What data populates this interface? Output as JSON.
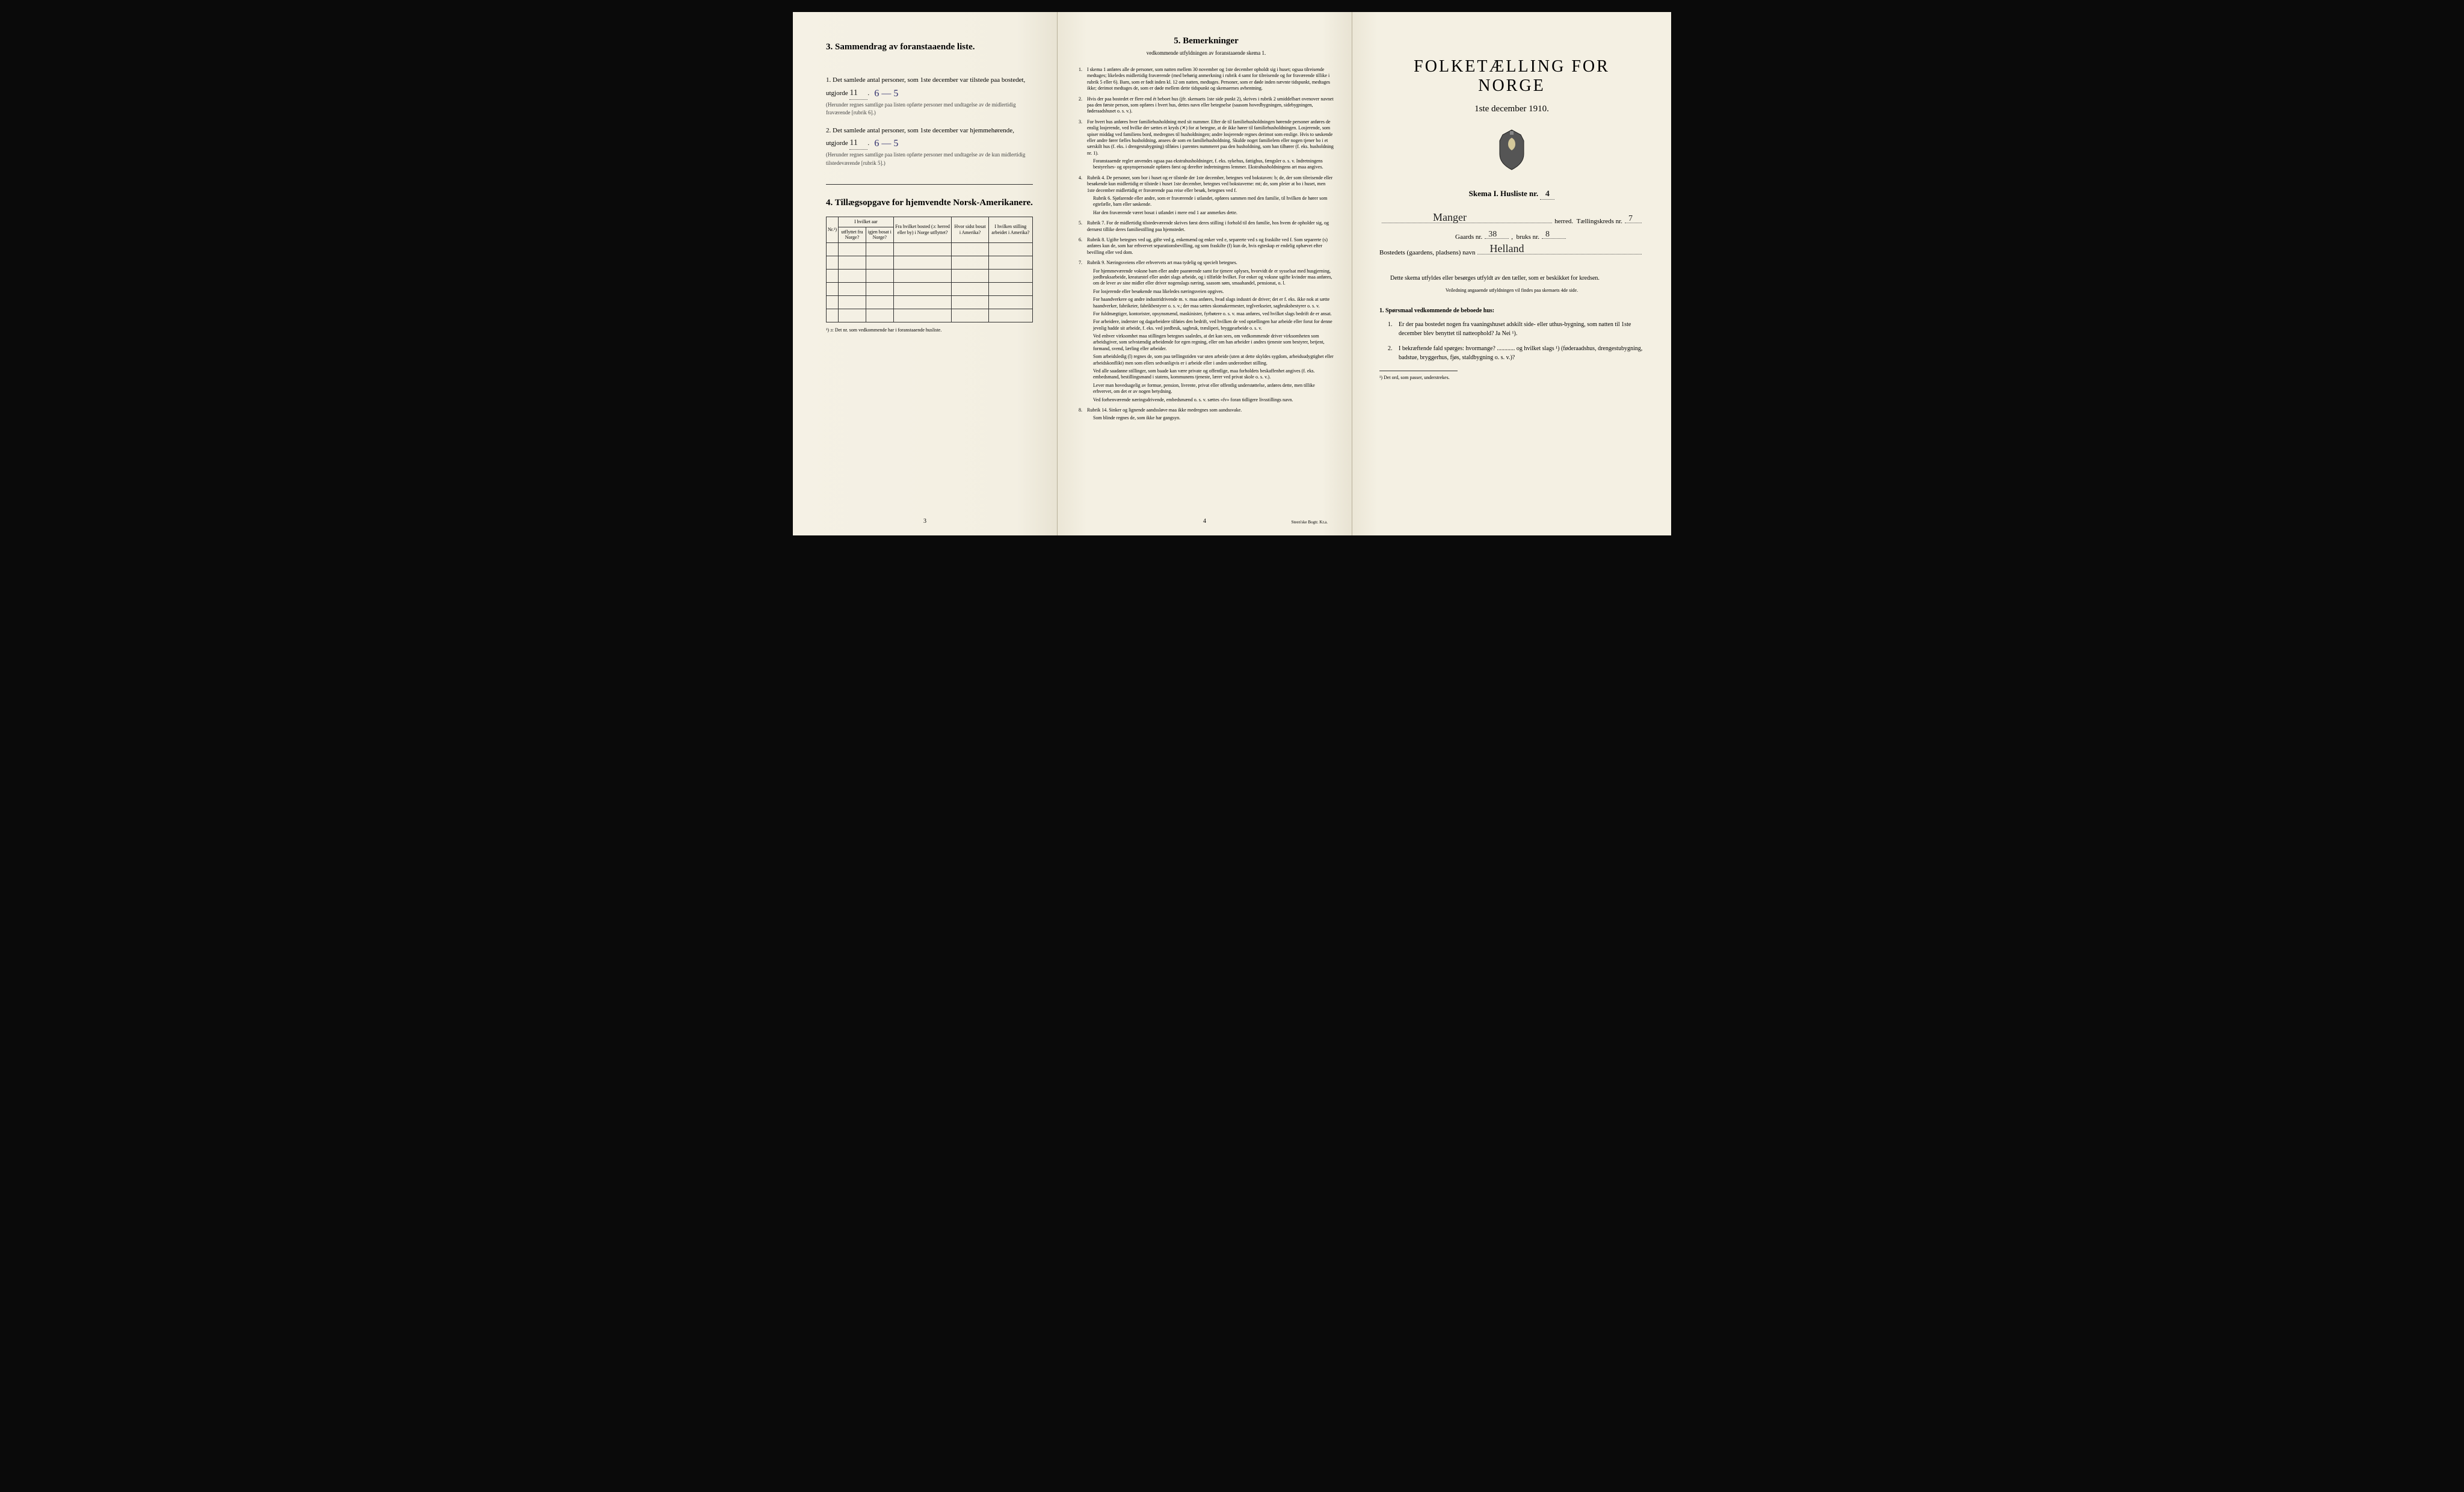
{
  "left": {
    "section3_heading": "3.   Sammendrag av foranstaaende liste.",
    "item1_text": "1.  Det samlede antal personer, som 1ste december var tilstede paa bostedet, utgjorde",
    "item1_total": "11",
    "item1_breakdown": "6 — 5",
    "item1_note": "(Herunder regnes samtlige paa listen opførte personer med undtagelse av de midlertidig fraværende [rubrik 6].)",
    "item2_text": "2.  Det samlede antal personer, som 1ste december var hjemmehørende, utgjorde",
    "item2_total": "11",
    "item2_breakdown": "6 — 5",
    "item2_note": "(Herunder regnes samtlige paa listen opførte personer med undtagelse av de kun midlertidig tilstedeværende [rubrik 5].)",
    "section4_heading": "4.  Tillægsopgave for hjemvendte Norsk-Amerikanere.",
    "table_headers": {
      "nr": "Nr.¹)",
      "year_group": "I hvilket aar",
      "emigrated": "utflyttet fra Norge?",
      "returned": "igjen bosat i Norge?",
      "from_place": "Fra hvilket bosted (ɔ: herred eller by) i Norge utflyttet?",
      "where_america": "Hvor sidst bosat i Amerika?",
      "occupation": "I hvilken stilling arbeidet i Amerika?"
    },
    "table_rows": 6,
    "footnote": "¹) ɔ: Det nr. som vedkommende har i foranstaaende husliste.",
    "page_num": "3"
  },
  "middle": {
    "heading": "5.   Bemerkninger",
    "subheading": "vedkommende utfyldningen av foranstaaende skema 1.",
    "items": [
      {
        "n": "1.",
        "text": "I skema 1 anføres alle de personer, som natten mellem 30 november og 1ste december opholdt sig i huset; ogsaa tilreisende medtages; likeledes midlertidig fraværende (med behørig anmerkning i rubrik 4 samt for tilreisende og for fraværende tillike i rubrik 5 eller 6). Barn, som er født inden kl. 12 om natten, medtages. Personer, som er døde inden nævnte tidspunkt, medtages ikke; derimot medtages de, som er døde mellem dette tidspunkt og skemaernes avhentning."
      },
      {
        "n": "2.",
        "text": "Hvis der paa bostedet er flere end ét beboet hus (jfr. skemaets 1ste side punkt 2), skrives i rubrik 2 umiddelbart ovenover navnet paa den første person, som opføres i hvert hus, dettes navn eller betegnelse (saasom hovedbygningen, sidebygningen, føderaadshuset o. s. v.)."
      },
      {
        "n": "3.",
        "text": "For hvert hus anføres hver familiehusholdning med sit nummer. Efter de til familiehusholdningen hørende personer anføres de enslig losjerende, ved hvilke der sættes et kryds (✕) for at betegne, at de ikke hører til familiehusholdningen. Losjerende, som spiser middag ved familiens bord, medregnes til husholdningen; andre losjerende regnes derimot som enslige. Hvis to søskende eller andre fører fælles husholdning, ansees de som en familiehusholdning. Skulde noget familielem eller nogen tjener bo i et særskilt hus (f. eks. i drengestubygning) tilføies i parentes nummeret paa den husholdning, som han tilhører (f. eks. husholdning nr. 1).",
        "subs": [
          "Foranstaaende regler anvendes ogsaa paa ekstrahusholdninger, f. eks. sykehus, fattighus, fængsler o. s. v. Indretningens bestyrelses- og opsynspersonale opføres først og derefter indretningens lemmer. Ekstrahusholdningens art maa angives."
        ]
      },
      {
        "n": "4.",
        "text": "Rubrik 4. De personer, som bor i huset og er tilstede der 1ste december, betegnes ved bokstaven: b; de, der som tilreisende eller besøkende kun midlertidig er tilstede i huset 1ste december, betegnes ved bokstaverne: mt; de, som pleier at bo i huset, men 1ste december midlertidig er fraværende paa reise eller besøk, betegnes ved f.",
        "subs": [
          "Rubrik 6. Sjøfarende eller andre, som er fraværende i utlandet, opføres sammen med den familie, til hvilken de hører som egtefælle, barn eller søskende.",
          "Har den fraværende været bosat i utlandet i mere end 1 aar anmerkes dette."
        ]
      },
      {
        "n": "5.",
        "text": "Rubrik 7. For de midlertidig tilstedeværende skrives først deres stilling i forhold til den familie, hos hvem de opholder sig, og dernæst tillike deres familiestilling paa hjemstedet."
      },
      {
        "n": "6.",
        "text": "Rubrik 8. Ugifte betegnes ved ug, gifte ved g, enkemænd og enker ved e, separerte ved s og fraskilte ved f. Som separerte (s) anføres kun de, som har erhvervet separationsbevilling, og som fraskilte (f) kun de, hvis egteskap er endelig ophævet efter bevilling eller ved dom."
      },
      {
        "n": "7.",
        "text": "Rubrik 9. Næringsveiens eller erhvervets art maa tydelig og specielt betegnes.",
        "subs": [
          "For hjemmeværende voksne barn eller andre paarørende samt for tjenere oplyses, hvorvidt de er sysselsat med husgjerning, jordbruksarbeide, kreaturstel eller andet slags arbeide, og i tilfælde hvilket. For enker og voksne ugifte kvinder maa anføres, om de lever av sine midler eller driver nogenslags næring, saasom søm, smaahandel, pensionat, o. l.",
          "For losjerende eller besøkende maa likeledes næringsveien opgives.",
          "For haandverkere og andre industridrivende m. v. maa anføres, hvad slags industri de driver; det er f. eks. ikke nok at sætte haandverker, fabrikeier, fabrikbestyrer o. s. v.; der maa sættes skomakermester, teglverkseier, sagbruksbestyrer o. s. v.",
          "For fuldmægtiger, kontorister, opsynsmænd, maskinister, fyrbøtere o. s. v. maa anføres, ved hvilket slags bedrift de er ansat.",
          "For arbeidere, inderster og dagarbeidere tilføies den bedrift, ved hvilken de ved optællingen har arbeide eller forut for denne jevnlig hadde sit arbeide, f. eks. ved jordbruk, sagbruk, træsliperi, bryggearbeide o. s. v.",
          "Ved enhver virksomhet maa stillingen betegnes saaledes, at det kan sees, om vedkommende driver virksomheten som arbeidsgiver, som selvstændig arbeidende for egen regning, eller om han arbeider i andres tjeneste som bestyrer, betjent, formand, svend, lærling eller arbeider.",
          "Som arbeidsledig (l) regnes de, som paa tællingstiden var uten arbeide (uten at dette skyldes sygdom, arbeidsudygtighet eller arbeidskonflikt) men som ellers sedvanligvis er i arbeide eller i anden underordnet stilling.",
          "Ved alle saadanne stillinger, som baade kan være private og offentlige, maa forholdets beskaffenhet angives (f. eks. embedsmand, bestillingsmand i statens, kommunens tjeneste, lærer ved privat skole o. s. v.).",
          "Lever man hovedsagelig av formue, pension, livrente, privat eller offentlig understøttelse, anføres dette, men tillike erhvervet, om det er av nogen betydning.",
          "Ved forhenværende næringsdrivende, embedsmænd o. s. v. sættes «fv» foran tidligere livsstillings navn."
        ]
      },
      {
        "n": "8.",
        "text": "Rubrik 14. Sinker og lignende aandssløve maa ikke medregnes som aandssvake.",
        "subs": [
          "Som blinde regnes de, som ikke har gangsyn."
        ]
      }
    ],
    "page_num": "4",
    "printer": "Steen'ske Bogtr. Kr.a."
  },
  "right": {
    "title": "FOLKETÆLLING FOR NORGE",
    "subtitle": "1ste december 1910.",
    "skema_line_a": "Skema I.   Husliste nr.",
    "husliste_nr": "4",
    "herred_label": "herred.",
    "herred_value": "Manger",
    "taellingskreds_label": "Tællingskreds nr.",
    "taellingskreds_value": "7",
    "gaards_label": "Gaards nr.",
    "gaards_value": "38",
    "bruks_label": "bruks nr.",
    "bruks_value": "8",
    "bosted_label": "Bostedets (gaardens, pladsens) navn",
    "bosted_value": "Helland",
    "body_para": "Dette skema utfyldes eller besørges utfyldt av den tæller, som er beskikket for kredsen.",
    "small_center": "Veiledning angaaende utfyldningen vil findes paa skemaets 4de side.",
    "q_head": "1. Spørsmaal vedkommende de beboede hus:",
    "q1": "Er der paa bostedet nogen fra vaaningshuset adskilt side- eller uthus-bygning, som natten til 1ste december blev benyttet til natteophold?    Ja    Nei ¹).",
    "q2": "I bekræftende fald spørges: hvormange? ............ og hvilket slags ¹) (føderaadshus, drengestubygning, badstue, bryggerhus, fjøs, staldbygning o. s. v.)?",
    "footnote": "¹) Det ord, som passer, understrekes."
  },
  "colors": {
    "paper": "#f4f0e4",
    "ink": "#1a1a1a",
    "handwriting_blue": "#2a2a6a"
  }
}
